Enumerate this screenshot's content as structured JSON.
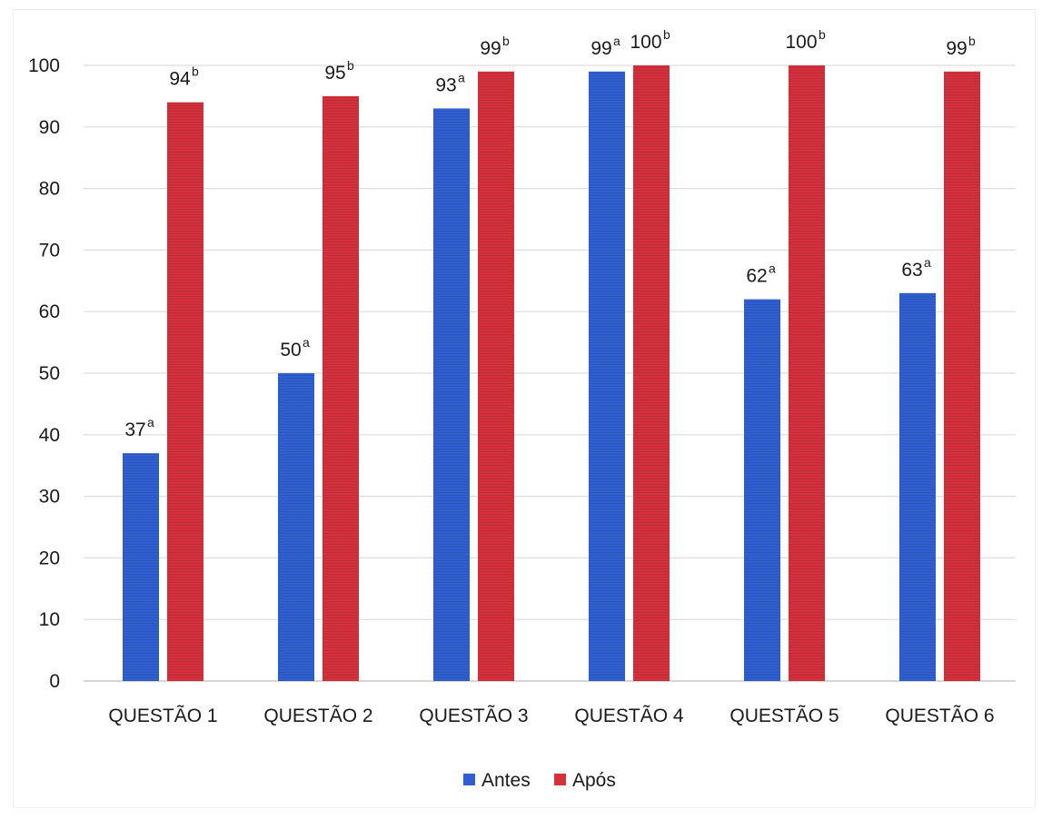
{
  "chart_data": {
    "type": "bar",
    "categories": [
      "QUESTÃO 1",
      "QUESTÃO 2",
      "QUESTÃO 3",
      "QUESTÃO 4",
      "QUESTÃO 5",
      "QUESTÃO 6"
    ],
    "series": [
      {
        "name": "Antes",
        "color": "#2f5fd0",
        "values": [
          37,
          50,
          93,
          99,
          62,
          63
        ],
        "superscripts": [
          "a",
          "a",
          "a",
          "a",
          "a",
          "a"
        ]
      },
      {
        "name": "Após",
        "color": "#d4313d",
        "values": [
          94,
          95,
          99,
          100,
          100,
          99
        ],
        "superscripts": [
          "b",
          "b",
          "b",
          "b",
          "b",
          "b"
        ]
      }
    ],
    "yticks": [
      "0",
      "10",
      "20",
      "30",
      "40",
      "50",
      "60",
      "70",
      "80",
      "90",
      "100"
    ],
    "ylim": [
      0,
      100
    ],
    "grid": true,
    "legend_position": "bottom"
  }
}
